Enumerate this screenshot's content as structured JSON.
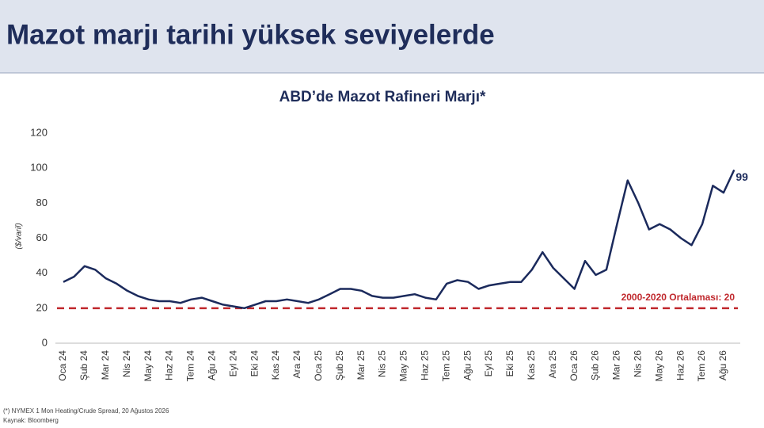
{
  "header": {
    "title": "Mazot marjı tarihi yüksek seviyelerde"
  },
  "chart_data": {
    "type": "line",
    "title": "ABD’de Mazot Rafineri Marjı*",
    "y_label": "($/varil)",
    "categories": [
      "Oca 24",
      null,
      "Şub 24",
      null,
      "Mar 24",
      null,
      "Nis 24",
      null,
      "May 24",
      null,
      "Haz 24",
      null,
      "Tem 24",
      null,
      "Ağu 24",
      null,
      "Eyl 24",
      null,
      "Eki 24",
      null,
      "Kas 24",
      null,
      "Ara 24",
      null,
      "Oca 25",
      null,
      "Şub 25",
      null,
      "Mar 25",
      null,
      "Nis 25",
      null,
      "May 25",
      null,
      "Haz 25",
      null,
      "Tem 25",
      null,
      "Ağu 25",
      null,
      "Eyl 25",
      null,
      "Eki 25",
      null,
      "Kas 25",
      null,
      "Ara 25",
      null,
      "Oca 26",
      null,
      "Şub 26",
      null,
      "Mar 26",
      null,
      "Nis 26",
      null,
      "May 26",
      null,
      "Haz 26",
      null,
      "Tem 26",
      null,
      "Ağu 26",
      null
    ],
    "series": [
      {
        "name": "Mazot Rafineri Marjı",
        "color": "#1b2a5c",
        "values": [
          35,
          38,
          44,
          42,
          37,
          34,
          30,
          27,
          25,
          24,
          24,
          23,
          25,
          26,
          24,
          22,
          21,
          20,
          22,
          24,
          24,
          25,
          24,
          23,
          25,
          28,
          31,
          31,
          30,
          27,
          26,
          26,
          27,
          28,
          26,
          25,
          34,
          36,
          35,
          31,
          33,
          34,
          35,
          35,
          42,
          52,
          43,
          37,
          31,
          47,
          39,
          42,
          68,
          93,
          80,
          65,
          68,
          65,
          60,
          56,
          68,
          90,
          86,
          99
        ]
      }
    ],
    "ylim": [
      0,
      120
    ],
    "yticks": [
      0,
      20,
      40,
      60,
      80,
      100,
      120
    ],
    "reference_line": {
      "value": 20,
      "label": "2000-2020 Ortalaması:  20",
      "color": "#c0282d"
    },
    "footnotes": [
      "(*) NYMEX 1 Mon Heating/Crude Spread, 20 Ağustos 2026",
      "Kaynak: Bloomberg"
    ]
  }
}
